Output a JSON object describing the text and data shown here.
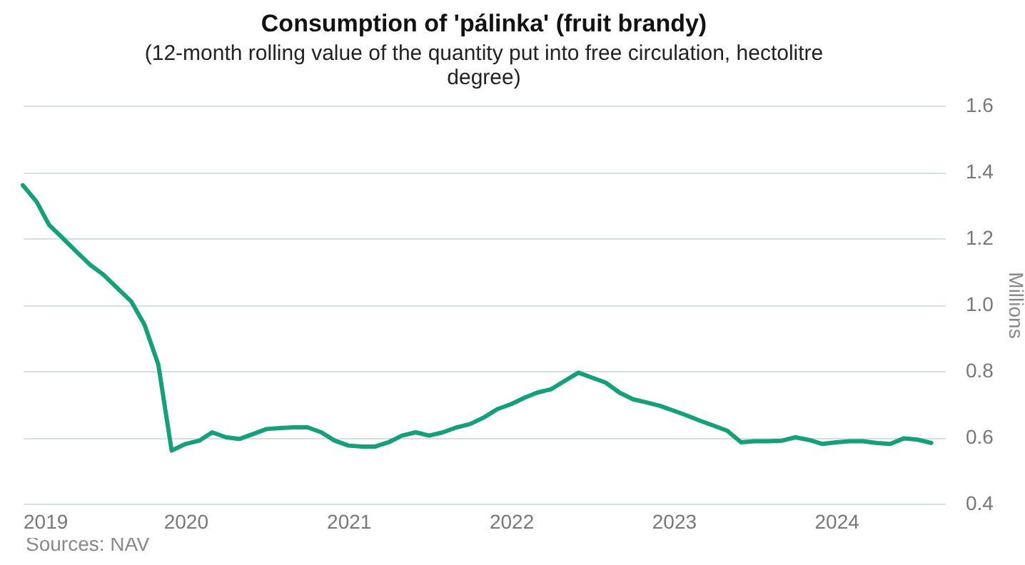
{
  "chart_data": {
    "type": "line",
    "title": "Consumption of 'pálinka' (fruit brandy)",
    "subtitle": "(12-month rolling value of the quantity put into free circulation, hectolitre degree)",
    "ylabel": "Millions",
    "annotations": [
      "Sources: NAV"
    ],
    "x": [
      "2019-01",
      "2019-02",
      "2019-03",
      "2019-04",
      "2019-05",
      "2019-06",
      "2019-07",
      "2019-08",
      "2019-09",
      "2019-10",
      "2019-11",
      "2019-12",
      "2020-01",
      "2020-02",
      "2020-03",
      "2020-04",
      "2020-05",
      "2020-06",
      "2020-07",
      "2020-08",
      "2020-09",
      "2020-10",
      "2020-11",
      "2020-12",
      "2021-01",
      "2021-02",
      "2021-03",
      "2021-04",
      "2021-05",
      "2021-06",
      "2021-07",
      "2021-08",
      "2021-09",
      "2021-10",
      "2021-11",
      "2021-12",
      "2022-01",
      "2022-02",
      "2022-03",
      "2022-04",
      "2022-05",
      "2022-06",
      "2022-07",
      "2022-08",
      "2022-09",
      "2022-10",
      "2022-11",
      "2022-12",
      "2023-01",
      "2023-02",
      "2023-03",
      "2023-04",
      "2023-05",
      "2023-06",
      "2023-07",
      "2023-08",
      "2023-09",
      "2023-10",
      "2023-11",
      "2023-12",
      "2024-01",
      "2024-02",
      "2024-03",
      "2024-04",
      "2024-05",
      "2024-06",
      "2024-07",
      "2024-08"
    ],
    "series": [
      {
        "color": "#14a07a",
        "values": [
          1.36,
          1.31,
          1.24,
          1.2,
          1.16,
          1.12,
          1.09,
          1.05,
          1.01,
          0.94,
          0.82,
          0.56,
          0.58,
          0.59,
          0.615,
          0.6,
          0.595,
          0.61,
          0.625,
          0.628,
          0.63,
          0.63,
          0.615,
          0.59,
          0.575,
          0.572,
          0.572,
          0.585,
          0.605,
          0.615,
          0.605,
          0.615,
          0.63,
          0.64,
          0.66,
          0.685,
          0.7,
          0.72,
          0.735,
          0.745,
          0.77,
          0.795,
          0.78,
          0.765,
          0.735,
          0.715,
          0.705,
          0.695,
          0.68,
          0.665,
          0.65,
          0.635,
          0.62,
          0.585,
          0.588,
          0.588,
          0.59,
          0.6,
          0.592,
          0.58,
          0.585,
          0.588,
          0.588,
          0.583,
          0.58,
          0.597,
          0.593,
          0.583
        ]
      }
    ],
    "xlim": [
      "2019-01",
      "2024-09"
    ],
    "xticks": [
      "2019",
      "2020",
      "2021",
      "2022",
      "2023",
      "2024"
    ],
    "ylim": [
      0.4,
      1.6
    ],
    "yticks": [
      0.4,
      0.6,
      0.8,
      {
        "value": 1,
        "label": "1.0"
      },
      1.2,
      1.4,
      1.6
    ],
    "grid": "y"
  }
}
